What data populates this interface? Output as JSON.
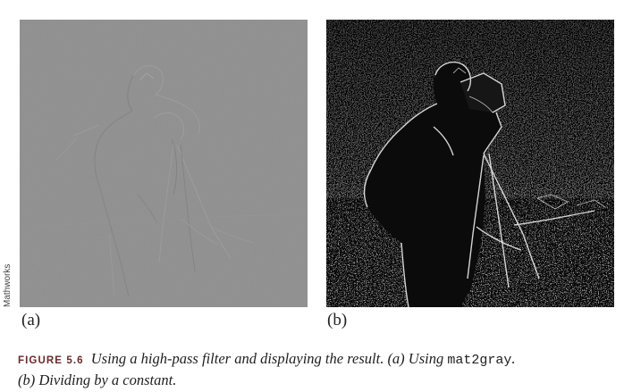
{
  "figure": {
    "credit": "Mathworks",
    "panel_a_label": "(a)",
    "panel_b_label": "(b)",
    "caption_tag": "FIGURE 5.6",
    "caption_text_1": "Using a high-pass filter and displaying the result. (a) Using",
    "caption_code": "mat2gray",
    "caption_text_2": ".",
    "caption_text_3": "(b) Dividing by a constant."
  },
  "colors": {
    "panel_a_gray": "#8f8f8f",
    "panel_b_dark": "#141414",
    "caption_tag": "#6a2a2a"
  }
}
